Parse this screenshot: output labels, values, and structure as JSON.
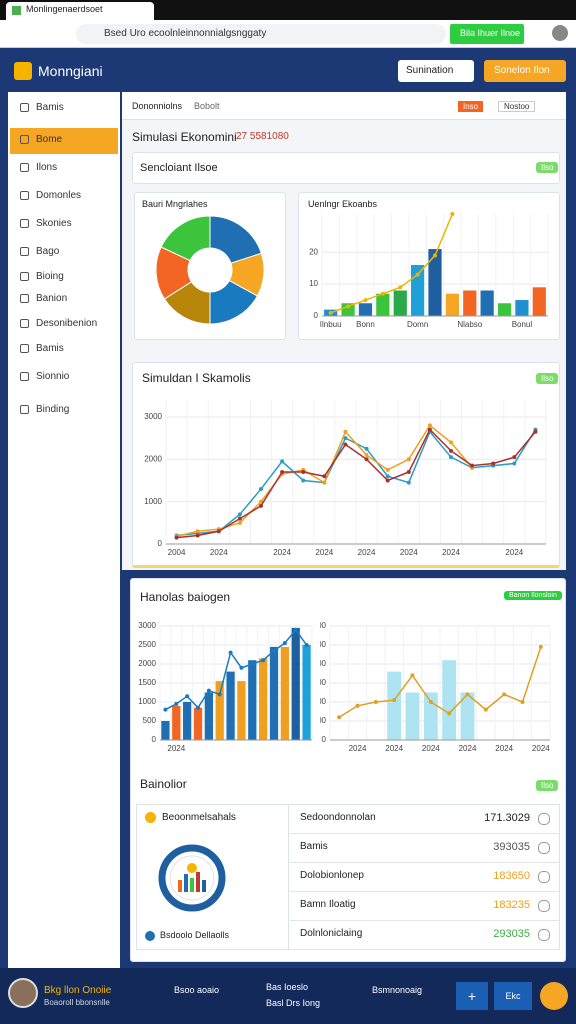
{
  "browser": {
    "tab": "Monlingenaerdsoet",
    "url": "Bsed Uro ecoolnleinnonnialgsnggaty",
    "button": "Bila Ihuer Ilnoe"
  },
  "header": {
    "logo": "Monngiani",
    "dropdown": "Sunination",
    "button": "Sonelon Ilon"
  },
  "sidebar": {
    "items": [
      "Bamis",
      "Bome",
      "Ilons",
      "Domonles",
      "Skonies",
      "Bago",
      "Bioing",
      "Banion",
      "Desonibenion",
      "Bamis",
      "Sionnio",
      "Binding"
    ]
  },
  "toolbar": {
    "left": "Dononniolns",
    "right": "Bobolt",
    "buttons": [
      "Inso",
      "Nostoo"
    ]
  },
  "page": {
    "title": "Simulasi Ekonomini",
    "code": "27 5581080"
  },
  "status_card": {
    "title": "Sencloiant Ilsoe",
    "badge": "Ilso"
  },
  "line_card": {
    "badge": "Ilso"
  },
  "panel": {
    "title": "Hanolas baiogen",
    "button": "Banon Ilonsloin",
    "table_title": "Bainolior",
    "table_badge": "Ilso"
  },
  "table": {
    "left_title": "Beoonmelsahals",
    "left_footer": "Bsdoolo Dellaolls",
    "rows": [
      [
        "Sedoondonnolan",
        "171.3029"
      ],
      [
        "Bamis",
        "393035"
      ],
      [
        "Dolobionlonep",
        "183650"
      ],
      [
        "Bamn Iloatig",
        "183235"
      ],
      [
        "Dolnloniclaing",
        "293035"
      ]
    ],
    "value_colors": [
      "#222222",
      "#555555",
      "#f0a020",
      "#f0a020",
      "#3cb043"
    ]
  },
  "footer": {
    "name": "Bkg llon Onoiie",
    "subtitle": "Boaoroll bbonsnlle",
    "items": [
      "Bsoo aoaio",
      "Bas Ioeslo",
      "Basl Drs Iong",
      "Bsmnonoaig"
    ],
    "buttons": [
      "+",
      "Ekc"
    ]
  },
  "chart_data": [
    {
      "type": "pie",
      "title": "Bauri Mngrlahes",
      "values": [
        20,
        13,
        17,
        16,
        16,
        18
      ],
      "colors": [
        "#1f6fb2",
        "#f5a623",
        "#1a7abf",
        "#b8860b",
        "#f26522",
        "#3dc43d"
      ]
    },
    {
      "type": "bar",
      "title": "Uenlngr Ekoanbs",
      "categories": [
        "Ilnbuu",
        null,
        "Bonn",
        null,
        null,
        "Domn",
        null,
        null,
        "Nlabso",
        null,
        null,
        "Bonul",
        null
      ],
      "values": [
        2,
        4,
        4,
        7,
        8,
        16,
        21,
        7,
        8,
        8,
        4,
        5,
        9
      ],
      "colors": [
        "#1f8fd0",
        "#3dc43d",
        "#1f6fb2",
        "#3dc43d",
        "#2aa84a",
        "#1fa0d8",
        "#1f5fa0",
        "#f5a623",
        "#f26522",
        "#1f6fb2",
        "#3dc43d",
        "#1f8fd0",
        "#f26522"
      ],
      "series": [
        {
          "color": "#f0b400",
          "values": [
            1,
            3,
            5,
            7,
            9,
            13,
            19,
            32,
            null,
            null,
            null,
            null,
            null
          ]
        }
      ],
      "ylim": [
        0,
        32
      ],
      "yticks": [
        0,
        10,
        20
      ]
    },
    {
      "type": "line",
      "title": "Simuldan I Skamolis",
      "categories": [
        "2004",
        null,
        "2024",
        null,
        null,
        "2024",
        null,
        "2024",
        null,
        "2024",
        null,
        "2024",
        null,
        "2024",
        null,
        null,
        "2024",
        null
      ],
      "series": [
        {
          "color": "#2a9dc4",
          "values": [
            200,
            250,
            300,
            700,
            1300,
            1950,
            1500,
            1450,
            2500,
            2250,
            1600,
            1450,
            2650,
            2050,
            1800,
            1850,
            1900,
            2700
          ]
        },
        {
          "color": "#f0a020",
          "values": [
            180,
            300,
            350,
            500,
            1000,
            1650,
            1750,
            1450,
            2650,
            2100,
            1750,
            2000,
            2800,
            2400,
            1800,
            null,
            null,
            null
          ]
        },
        {
          "color": "#a83232",
          "values": [
            150,
            200,
            300,
            600,
            900,
            1700,
            1700,
            1600,
            2350,
            2000,
            1500,
            1700,
            2700,
            2200,
            1850,
            1900,
            2050,
            2650
          ]
        }
      ],
      "ylim": [
        0,
        3400
      ],
      "yticks": [
        0,
        1000,
        2000,
        3000
      ]
    },
    {
      "type": "combo",
      "categories": [
        null,
        "2024",
        null,
        null,
        null,
        null,
        null,
        null,
        null,
        null,
        null,
        null,
        null,
        null
      ],
      "values": [
        500,
        900,
        1000,
        850,
        1250,
        1550,
        1800,
        1550,
        2100,
        2150,
        2450,
        2450,
        2950,
        2500
      ],
      "colors": [
        "#1f6fb2",
        "#f26522",
        "#1f6fb2",
        "#f26522",
        "#1f6fb2",
        "#f0a020",
        "#1f6fb2",
        "#f0a020",
        "#1f6fb2",
        "#f0a020",
        "#1f6fb2",
        "#f0a020",
        "#1f5fa0",
        "#1fa0d8"
      ],
      "series": [
        {
          "color": "#1a7abf",
          "values": [
            800,
            950,
            1150,
            850,
            1300,
            1200,
            2300,
            1900,
            2000,
            2100,
            2350,
            2550,
            2900,
            2500
          ]
        }
      ],
      "ylim": [
        0,
        3000
      ],
      "yticks": [
        0,
        500,
        1000,
        1500,
        2000,
        2500,
        3000
      ]
    },
    {
      "type": "combo",
      "categories": [
        null,
        "2024",
        null,
        "2024",
        null,
        "2024",
        null,
        "2024",
        null,
        "2024",
        null,
        "2024"
      ],
      "values": [
        null,
        null,
        null,
        1800,
        1250,
        1250,
        2100,
        1250,
        null,
        null,
        null,
        null
      ],
      "colors": [
        "#aee4f2",
        "#aee4f2",
        "#aee4f2",
        "#aee4f2",
        "#aee4f2",
        "#aee4f2",
        "#aee4f2",
        "#aee4f2",
        "#aee4f2",
        "#aee4f2",
        "#aee4f2",
        "#aee4f2"
      ],
      "series": [
        {
          "color": "#e0a020",
          "values": [
            600,
            900,
            1000,
            1050,
            1700,
            1000,
            700,
            1200,
            800,
            1200,
            1000,
            2450
          ]
        }
      ],
      "ylim": [
        0,
        3000
      ],
      "yticks": [
        0,
        500,
        1000,
        1500,
        2000,
        2500,
        3000
      ]
    }
  ]
}
